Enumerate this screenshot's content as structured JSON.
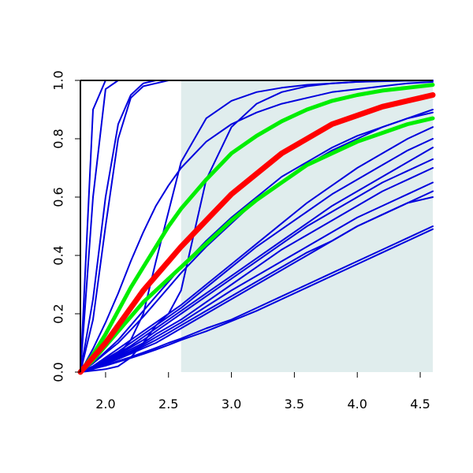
{
  "chart_data": {
    "type": "line",
    "title": "",
    "xlabel": "",
    "ylabel": "",
    "xlim": [
      1.8,
      4.6
    ],
    "ylim": [
      0.0,
      1.0
    ],
    "x_ticks": [
      "2.0",
      "2.5",
      "3.0",
      "3.5",
      "4.0",
      "4.5"
    ],
    "x_tick_values": [
      2.0,
      2.5,
      3.0,
      3.5,
      4.0,
      4.5
    ],
    "y_ticks": [
      "0.0",
      "0.2",
      "0.4",
      "0.6",
      "0.8",
      "1.0"
    ],
    "y_tick_values": [
      0.0,
      0.2,
      0.4,
      0.6,
      0.8,
      1.0
    ],
    "shaded_region": {
      "x_from": 2.6,
      "x_to": 4.6,
      "color": "#e0eded"
    },
    "grid": false,
    "legend": "none",
    "colors": {
      "blue": "#0000dd",
      "red": "#ff0000",
      "green": "#00ee00"
    },
    "x_sample": [
      1.8,
      1.9,
      2.0,
      2.1,
      2.2,
      2.3,
      2.4,
      2.5,
      2.6,
      2.8,
      3.0,
      3.2,
      3.4,
      3.6,
      3.8,
      4.0,
      4.2,
      4.4,
      4.6
    ],
    "series": [
      {
        "color": "blue",
        "y": [
          0.0,
          0.9,
          1.0,
          1.0,
          1.0,
          1.0,
          1.0,
          1.0,
          1.0,
          1.0,
          1.0,
          1.0,
          1.0,
          1.0,
          1.0,
          1.0,
          1.0,
          1.0,
          1.0
        ]
      },
      {
        "color": "blue",
        "y": [
          0.0,
          0.6,
          0.97,
          1.0,
          1.0,
          1.0,
          1.0,
          1.0,
          1.0,
          1.0,
          1.0,
          1.0,
          1.0,
          1.0,
          1.0,
          1.0,
          1.0,
          1.0,
          1.0
        ]
      },
      {
        "color": "blue",
        "y": [
          0.0,
          0.25,
          0.6,
          0.85,
          0.95,
          0.99,
          1.0,
          1.0,
          1.0,
          1.0,
          1.0,
          1.0,
          1.0,
          1.0,
          1.0,
          1.0,
          1.0,
          1.0,
          1.0
        ]
      },
      {
        "color": "blue",
        "y": [
          0.0,
          0.18,
          0.5,
          0.8,
          0.94,
          0.98,
          0.99,
          1.0,
          1.0,
          1.0,
          1.0,
          1.0,
          1.0,
          1.0,
          1.0,
          1.0,
          1.0,
          1.0,
          1.0
        ]
      },
      {
        "color": "blue",
        "y": [
          0.0,
          0.01,
          0.03,
          0.06,
          0.11,
          0.2,
          0.38,
          0.55,
          0.72,
          0.87,
          0.93,
          0.96,
          0.975,
          0.985,
          0.99,
          0.995,
          0.997,
          0.999,
          1.0
        ]
      },
      {
        "color": "blue",
        "y": [
          0.0,
          0.08,
          0.17,
          0.27,
          0.38,
          0.48,
          0.57,
          0.64,
          0.7,
          0.79,
          0.85,
          0.89,
          0.92,
          0.94,
          0.96,
          0.97,
          0.98,
          0.99,
          0.995
        ]
      },
      {
        "color": "blue",
        "y": [
          0.0,
          0.005,
          0.01,
          0.02,
          0.05,
          0.1,
          0.16,
          0.2,
          0.28,
          0.66,
          0.84,
          0.92,
          0.96,
          0.98,
          0.99,
          0.995,
          0.998,
          0.999,
          1.0
        ]
      },
      {
        "color": "blue",
        "y": [
          0.0,
          0.02,
          0.05,
          0.08,
          0.11,
          0.14,
          0.17,
          0.2,
          0.23,
          0.3,
          0.37,
          0.44,
          0.51,
          0.58,
          0.64,
          0.7,
          0.75,
          0.8,
          0.84
        ]
      },
      {
        "color": "blue",
        "y": [
          0.0,
          0.02,
          0.045,
          0.07,
          0.1,
          0.13,
          0.16,
          0.19,
          0.22,
          0.29,
          0.36,
          0.43,
          0.49,
          0.55,
          0.61,
          0.66,
          0.71,
          0.76,
          0.8
        ]
      },
      {
        "color": "blue",
        "y": [
          0.0,
          0.02,
          0.04,
          0.065,
          0.09,
          0.12,
          0.15,
          0.18,
          0.21,
          0.27,
          0.33,
          0.39,
          0.45,
          0.51,
          0.57,
          0.62,
          0.67,
          0.72,
          0.77
        ]
      },
      {
        "color": "blue",
        "y": [
          0.0,
          0.018,
          0.038,
          0.06,
          0.085,
          0.11,
          0.14,
          0.17,
          0.2,
          0.26,
          0.32,
          0.38,
          0.44,
          0.5,
          0.55,
          0.6,
          0.65,
          0.69,
          0.73
        ]
      },
      {
        "color": "blue",
        "y": [
          0.0,
          0.017,
          0.035,
          0.056,
          0.078,
          0.1,
          0.13,
          0.155,
          0.18,
          0.24,
          0.3,
          0.36,
          0.42,
          0.47,
          0.52,
          0.57,
          0.62,
          0.66,
          0.7
        ]
      },
      {
        "color": "blue",
        "y": [
          0.0,
          0.016,
          0.033,
          0.052,
          0.072,
          0.094,
          0.12,
          0.145,
          0.17,
          0.225,
          0.28,
          0.33,
          0.38,
          0.43,
          0.48,
          0.53,
          0.57,
          0.61,
          0.65
        ]
      },
      {
        "color": "blue",
        "y": [
          0.0,
          0.015,
          0.03,
          0.048,
          0.067,
          0.088,
          0.11,
          0.135,
          0.16,
          0.21,
          0.26,
          0.31,
          0.36,
          0.41,
          0.45,
          0.5,
          0.54,
          0.58,
          0.62
        ]
      },
      {
        "color": "blue",
        "y": [
          0.0,
          0.014,
          0.028,
          0.045,
          0.063,
          0.082,
          0.1,
          0.125,
          0.15,
          0.2,
          0.25,
          0.3,
          0.35,
          0.4,
          0.45,
          0.5,
          0.54,
          0.58,
          0.6
        ]
      },
      {
        "color": "blue",
        "y": [
          0.0,
          0.012,
          0.024,
          0.038,
          0.052,
          0.067,
          0.083,
          0.1,
          0.115,
          0.15,
          0.18,
          0.22,
          0.26,
          0.3,
          0.34,
          0.38,
          0.42,
          0.46,
          0.5
        ]
      },
      {
        "color": "blue",
        "y": [
          0.0,
          0.011,
          0.022,
          0.035,
          0.048,
          0.062,
          0.077,
          0.093,
          0.11,
          0.14,
          0.175,
          0.21,
          0.25,
          0.29,
          0.33,
          0.37,
          0.41,
          0.45,
          0.49
        ]
      },
      {
        "color": "blue",
        "y": [
          0.0,
          0.03,
          0.07,
          0.11,
          0.16,
          0.21,
          0.26,
          0.31,
          0.36,
          0.45,
          0.53,
          0.6,
          0.67,
          0.72,
          0.77,
          0.81,
          0.84,
          0.87,
          0.89
        ]
      },
      {
        "color": "blue",
        "y": [
          0.0,
          0.03,
          0.065,
          0.1,
          0.145,
          0.19,
          0.24,
          0.29,
          0.34,
          0.43,
          0.51,
          0.59,
          0.65,
          0.71,
          0.76,
          0.8,
          0.84,
          0.87,
          0.9
        ]
      },
      {
        "color": "green",
        "y": [
          0.0,
          0.06,
          0.13,
          0.21,
          0.29,
          0.36,
          0.43,
          0.5,
          0.56,
          0.66,
          0.75,
          0.81,
          0.86,
          0.9,
          0.93,
          0.95,
          0.965,
          0.975,
          0.985
        ]
      },
      {
        "color": "green",
        "y": [
          0.0,
          0.04,
          0.09,
          0.14,
          0.19,
          0.24,
          0.28,
          0.32,
          0.36,
          0.44,
          0.52,
          0.59,
          0.65,
          0.71,
          0.75,
          0.79,
          0.82,
          0.85,
          0.87
        ]
      },
      {
        "color": "red",
        "y": [
          0.0,
          0.05,
          0.1,
          0.16,
          0.22,
          0.28,
          0.33,
          0.38,
          0.43,
          0.52,
          0.61,
          0.68,
          0.75,
          0.8,
          0.85,
          0.88,
          0.91,
          0.93,
          0.95
        ]
      }
    ]
  }
}
